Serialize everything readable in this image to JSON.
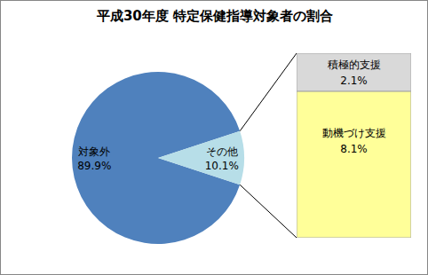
{
  "chart_data": [
    {
      "type": "pie",
      "title": "平成30年度 特定保健指導対象者の割合",
      "categories": [
        "対象外",
        "その他"
      ],
      "values": [
        89.9,
        10.1
      ],
      "value_labels": [
        "89.9%",
        "10.1%"
      ],
      "colors": [
        "#4f81bd",
        "#b7dee8"
      ],
      "data_labels": true
    },
    {
      "type": "bar",
      "stacked": true,
      "categories": [
        "積極的支援",
        "動機づけ支援"
      ],
      "values": [
        2.1,
        8.1
      ],
      "value_labels": [
        "2.1%",
        "8.1%"
      ],
      "colors": [
        "#d9d9d9",
        "#ffff99"
      ],
      "data_labels": true,
      "tick_labels": false
    }
  ]
}
